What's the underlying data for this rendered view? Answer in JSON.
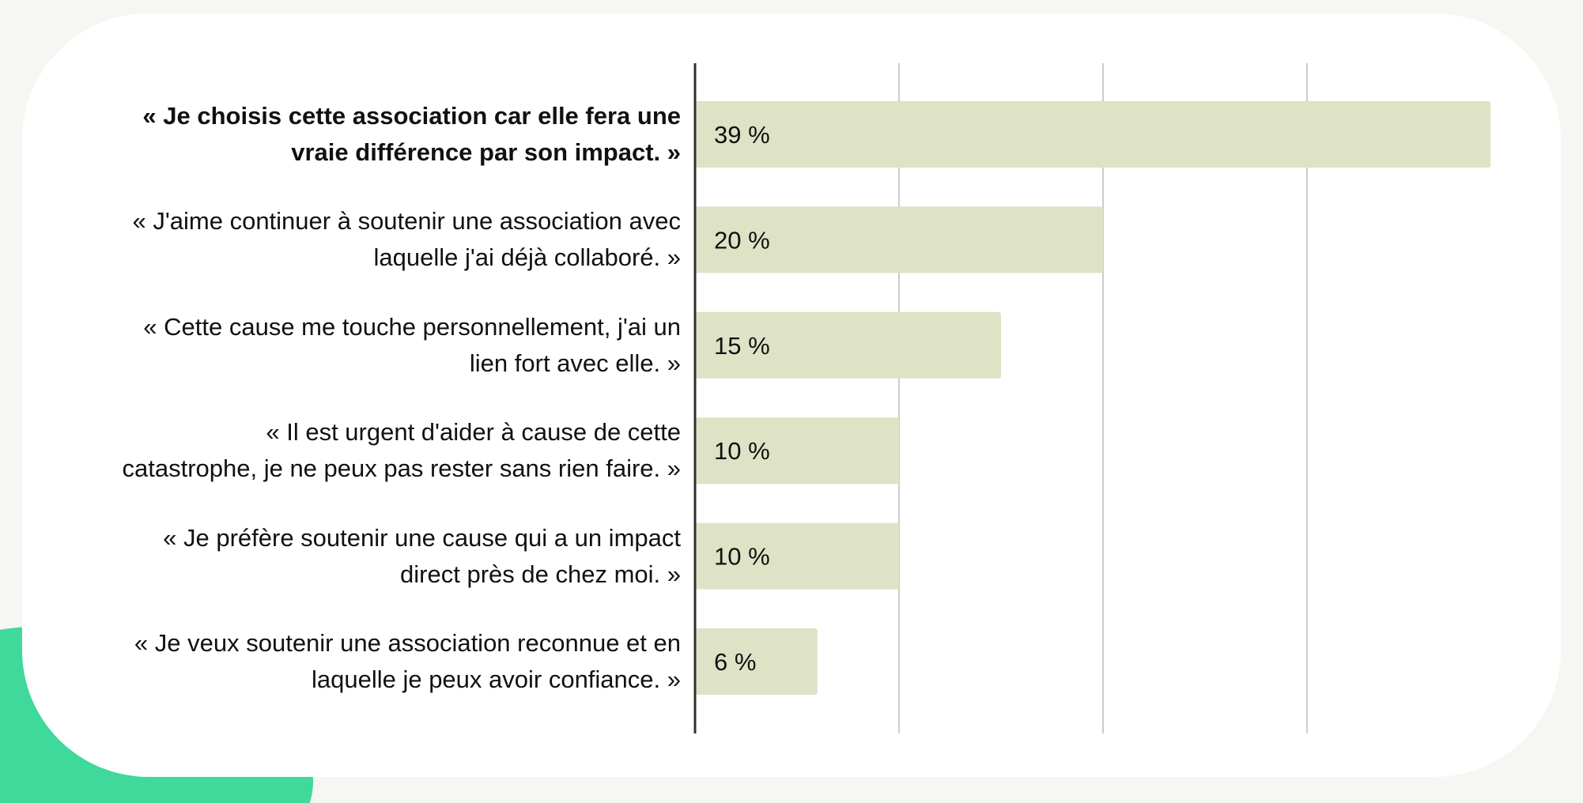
{
  "colors": {
    "page_background": "#f6f6f2",
    "card": "#ffffff",
    "accent_blob": "#3fd99b",
    "bar_fill": "#dfe3c6",
    "grid": "#cccccc",
    "axis": "#333333",
    "text": "#111111"
  },
  "chart_data": {
    "type": "bar",
    "orientation": "horizontal",
    "categories": [
      "« Je choisis cette association car elle fera une vraie différence par son impact. »",
      "« J'aime continuer à soutenir une association avec laquelle j'ai déjà collaboré. »",
      "« Cette cause me touche personnellement, j'ai un lien fort avec elle. »",
      "« Il est urgent d'aider à cause de cette catastrophe, je ne peux pas rester sans rien faire. »",
      "« Je préfère soutenir une cause qui a un impact direct près de chez moi. »",
      "« Je veux soutenir une association reconnue et en laquelle je peux avoir confiance. »"
    ],
    "label_lines": [
      [
        "«  Je choisis cette association car elle fera une",
        "vraie différence par son impact. »"
      ],
      [
        "«  J'aime continuer à soutenir une association avec",
        "laquelle j'ai déjà collaboré. »"
      ],
      [
        "«  Cette cause me touche personnellement, j'ai un",
        "lien fort avec elle. »"
      ],
      [
        "«  Il est urgent d'aider à cause de cette",
        "catastrophe, je ne peux pas rester sans rien faire. »"
      ],
      [
        "«  Je préfère soutenir une cause qui a un impact",
        "direct près de chez moi. »"
      ],
      [
        "«  Je veux soutenir une association reconnue et en",
        "laquelle je peux avoir confiance. »"
      ]
    ],
    "values": [
      39,
      20,
      15,
      10,
      10,
      6
    ],
    "value_labels": [
      "39 %",
      "20 %",
      "15 %",
      "10 %",
      "10 %",
      "6 %"
    ],
    "highlight_index": 0,
    "unit": "%",
    "xlim": [
      0,
      40
    ],
    "grid": true,
    "gridlines_at": [
      10,
      20,
      30
    ],
    "tick_labels_shown": false,
    "title": "",
    "xlabel": "",
    "ylabel": ""
  }
}
